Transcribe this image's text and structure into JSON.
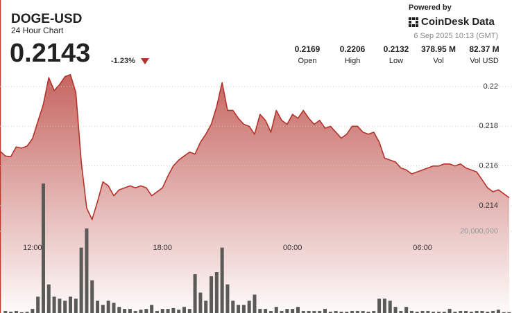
{
  "chart_data": {
    "type": "line",
    "title": "DOGE-USD",
    "subtitle": "24 Hour Chart",
    "price": "0.2143",
    "change": "-1.23%",
    "powered_by": "Powered by",
    "brand": "CoinDesk Data",
    "timestamp": "6 Sep 2025 10:13 (GMT)",
    "stats": [
      {
        "value": "0.2169",
        "label": "Open"
      },
      {
        "value": "0.2206",
        "label": "High"
      },
      {
        "value": "0.2132",
        "label": "Low"
      },
      {
        "value": "378.95 M",
        "label": "Vol"
      },
      {
        "value": "82.37 M",
        "label": "Vol USD"
      }
    ],
    "categories": [
      null,
      null,
      null,
      null,
      null,
      null,
      "12:00",
      null,
      null,
      null,
      null,
      null,
      null,
      null,
      null,
      null,
      null,
      null,
      null,
      null,
      null,
      null,
      null,
      null,
      null,
      null,
      null,
      null,
      null,
      null,
      "18:00",
      null,
      null,
      null,
      null,
      null,
      null,
      null,
      null,
      null,
      null,
      null,
      null,
      null,
      null,
      null,
      null,
      null,
      null,
      null,
      null,
      null,
      null,
      null,
      "00:00",
      null,
      null,
      null,
      null,
      null,
      null,
      null,
      null,
      null,
      null,
      null,
      null,
      null,
      null,
      null,
      null,
      null,
      null,
      null,
      null,
      null,
      null,
      null,
      "06:00",
      null,
      null,
      null,
      null,
      null,
      null,
      null,
      null,
      null,
      null,
      null,
      null,
      null,
      null,
      null,
      null
    ],
    "series": [
      {
        "color": "#b3322b",
        "fill": true,
        "values": [
          0.21675,
          0.2165,
          0.21647,
          0.21696,
          0.2169,
          0.217,
          0.21738,
          0.21825,
          0.2191,
          0.22045,
          0.2198,
          0.2201,
          0.2205,
          0.2206,
          0.2197,
          0.2162,
          0.21388,
          0.2133,
          0.2142,
          0.2152,
          0.215,
          0.2145,
          0.2148,
          0.2149,
          0.215,
          0.2149,
          0.215,
          0.2149,
          0.2145,
          0.2147,
          0.2149,
          0.2155,
          0.216,
          0.2163,
          0.2165,
          0.2167,
          0.2166,
          0.2172,
          0.2176,
          0.2181,
          0.219,
          0.2202,
          0.2188,
          0.2188,
          0.2184,
          0.2181,
          0.218,
          0.2176,
          0.2186,
          0.2183,
          0.2177,
          0.2188,
          0.2183,
          0.2181,
          0.2186,
          0.2184,
          0.2188,
          0.2184,
          0.2181,
          0.2183,
          0.2179,
          0.218,
          0.2177,
          0.2174,
          0.2176,
          0.218,
          0.218,
          0.2177,
          0.2176,
          0.2177,
          0.2172,
          0.2164,
          0.2163,
          0.2162,
          0.2159,
          0.2158,
          0.2156,
          0.2157,
          0.2158,
          0.2159,
          0.216,
          0.216,
          0.2161,
          0.2161,
          0.216,
          0.2161,
          0.2159,
          0.2158,
          0.2157,
          0.2153,
          0.2149,
          0.2147,
          0.2148,
          0.2146,
          0.2144
        ]
      },
      {
        "color": "#5a5a56",
        "axis": "y2",
        "values": [
          0,
          500000,
          300000,
          500000,
          200000,
          300000,
          1000000,
          4000000,
          31700000,
          7000000,
          4000000,
          3500000,
          3000000,
          4000000,
          3500000,
          16000000,
          20700000,
          8000000,
          3000000,
          2000000,
          3000000,
          2500000,
          1500000,
          1000000,
          1000000,
          500000,
          800000,
          1000000,
          2000000,
          500000,
          1000000,
          1000000,
          1200000,
          800000,
          1500000,
          1000000,
          9500000,
          5000000,
          3000000,
          9000000,
          10000000,
          16000000,
          7000000,
          3000000,
          2000000,
          2000000,
          3000000,
          4500000,
          1000000,
          1000000,
          500000,
          1500000,
          500000,
          1000000,
          1000000,
          1500000,
          500000,
          500000,
          500000,
          500000,
          1000000,
          300000,
          500000,
          300000,
          300000,
          500000,
          500000,
          500000,
          300000,
          500000,
          3500000,
          3500000,
          3000000,
          1500000,
          500000,
          1500000,
          500000,
          300000,
          500000,
          500000,
          300000,
          300000,
          300000,
          1000000,
          300000,
          500000,
          500000,
          300000,
          500000,
          500000,
          300000,
          500000,
          800000,
          200000,
          200000
        ]
      }
    ],
    "ylim": [
      0.2125,
      0.2215
    ],
    "yticks": [
      0.214,
      0.216,
      0.218,
      0.22
    ],
    "y2lim": [
      0,
      20000000
    ],
    "y2ticks": [
      {
        "value": 20000000,
        "label": "20,000,000"
      }
    ],
    "grid": true
  }
}
